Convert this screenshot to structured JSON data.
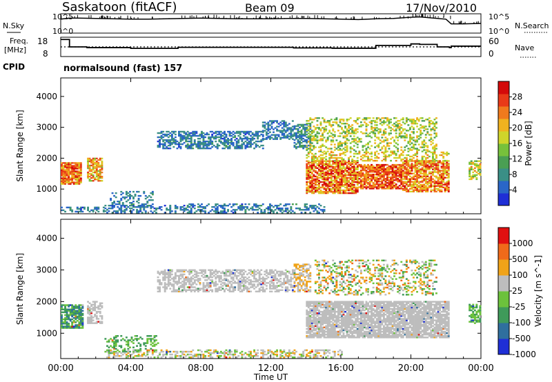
{
  "header": {
    "station": "Saskatoon (fitACF)",
    "beam": "Beam 09",
    "date": "17/Nov/2010",
    "cpid_label": "CPID",
    "mode": "normalsound (fast) 157"
  },
  "colors": {
    "scatter_grey": "#bdbdbd",
    "noise_black": "#000000"
  },
  "chart_data": [
    {
      "type": "line",
      "panel": "noise",
      "left_label": "N.Sky",
      "right_label": "N.Search",
      "left_ticks": [
        "10^5",
        "10^0"
      ],
      "right_ticks": [
        "10^5",
        "10^0"
      ],
      "xlim": [
        0,
        24
      ],
      "series": [
        {
          "name": "N.Sky",
          "style": "solid",
          "x": [
            0,
            0.5,
            1,
            2,
            3,
            4,
            5,
            6,
            7,
            8,
            9,
            10,
            11,
            12,
            13,
            14,
            15,
            16,
            17,
            18,
            19,
            20,
            20.5,
            21,
            22,
            22.3,
            23,
            24
          ],
          "values": [
            3.6,
            3.9,
            3.9,
            3.8,
            3.7,
            3.6,
            3.6,
            3.7,
            3.8,
            3.9,
            3.8,
            3.7,
            3.7,
            3.7,
            3.8,
            3.8,
            3.7,
            3.6,
            3.5,
            3.7,
            3.8,
            4.1,
            4.2,
            4.0,
            3.6,
            2.4,
            2.4,
            2.5
          ]
        },
        {
          "name": "N.Search",
          "style": "dotted",
          "x": [],
          "values": []
        }
      ]
    },
    {
      "type": "line",
      "panel": "frequency",
      "left_label": "Freq. [MHz]",
      "right_label": "Nave",
      "left_ticks": [
        18,
        8
      ],
      "right_ticks": [
        60,
        0
      ],
      "xlim": [
        0,
        24
      ],
      "series": [
        {
          "name": "Freq",
          "style": "solid",
          "x": [
            0,
            0.4,
            0.5,
            1.3,
            1.5,
            3.7,
            4.0,
            5.5,
            6.5,
            6.7,
            12.0,
            13.0,
            13.3,
            15.5,
            17.7,
            18.0,
            20.0,
            20.5,
            21.5,
            22.2,
            22.3,
            23.8,
            24
          ],
          "values": [
            17.5,
            17.5,
            12.5,
            12.5,
            12,
            12,
            11.5,
            11.5,
            11.5,
            12.2,
            12.2,
            12.2,
            11.8,
            11.6,
            11.6,
            13.5,
            14.5,
            14.2,
            12.5,
            12,
            13,
            13,
            13
          ]
        },
        {
          "name": "Nave",
          "style": "dotted",
          "x": [
            0,
            24
          ],
          "values": [
            12.5,
            12.5
          ]
        }
      ]
    },
    {
      "type": "heatmap",
      "panel": "power",
      "ylabel": "Slant Range [km]",
      "xlabel": "",
      "xlim": [
        0,
        24
      ],
      "ylim": [
        200,
        4600
      ],
      "yticks": [
        1000,
        2000,
        3000,
        4000
      ],
      "colorbar": {
        "label": "Power [dB]",
        "ticks": [
          4,
          8,
          12,
          16,
          20,
          24,
          28
        ],
        "range": [
          0,
          32
        ],
        "colors": [
          "#1f2fd6",
          "#2a66c7",
          "#3a8f86",
          "#4a9f53",
          "#77c13b",
          "#cfd52b",
          "#f0b21f",
          "#f07a1d",
          "#e83a18",
          "#d40a0a"
        ]
      },
      "echoes": [
        {
          "t": [
            0.0,
            1.2
          ],
          "r": [
            1150,
            1850
          ],
          "v": [
            18,
            30
          ],
          "d": 0.85
        },
        {
          "t": [
            1.5,
            2.4
          ],
          "r": [
            1250,
            2000
          ],
          "v": [
            14,
            28
          ],
          "d": 0.7
        },
        {
          "t": [
            0.0,
            2.5
          ],
          "r": [
            250,
            420
          ],
          "v": [
            3,
            10
          ],
          "d": 0.5
        },
        {
          "t": [
            2.5,
            7.0
          ],
          "r": [
            220,
            450
          ],
          "v": [
            3,
            9
          ],
          "d": 0.45
        },
        {
          "t": [
            2.8,
            5.2
          ],
          "r": [
            400,
            900
          ],
          "v": [
            4,
            10
          ],
          "d": 0.3
        },
        {
          "t": [
            7.0,
            15.0
          ],
          "r": [
            220,
            500
          ],
          "v": [
            3,
            10
          ],
          "d": 0.45
        },
        {
          "t": [
            5.5,
            11.5
          ],
          "r": [
            2300,
            2850
          ],
          "v": [
            3,
            10
          ],
          "d": 0.55
        },
        {
          "t": [
            11.5,
            13.2
          ],
          "r": [
            2600,
            3200
          ],
          "v": [
            3,
            9
          ],
          "d": 0.6
        },
        {
          "t": [
            13.3,
            14.2
          ],
          "r": [
            2300,
            3100
          ],
          "v": [
            4,
            11
          ],
          "d": 0.65
        },
        {
          "t": [
            14.0,
            17.0
          ],
          "r": [
            850,
            1900
          ],
          "v": [
            16,
            32
          ],
          "d": 0.8
        },
        {
          "t": [
            17.0,
            19.5
          ],
          "r": [
            1000,
            1800
          ],
          "v": [
            20,
            32
          ],
          "d": 0.85
        },
        {
          "t": [
            19.5,
            22.2
          ],
          "r": [
            900,
            1900
          ],
          "v": [
            16,
            30
          ],
          "d": 0.75
        },
        {
          "t": [
            14.0,
            21.5
          ],
          "r": [
            2200,
            3300
          ],
          "v": [
            10,
            22
          ],
          "d": 0.35
        },
        {
          "t": [
            14.0,
            22.2
          ],
          "r": [
            1900,
            2200
          ],
          "v": [
            14,
            24
          ],
          "d": 0.4
        },
        {
          "t": [
            23.3,
            24.0
          ],
          "r": [
            1300,
            1900
          ],
          "v": [
            12,
            24
          ],
          "d": 0.6
        }
      ]
    },
    {
      "type": "heatmap",
      "panel": "velocity",
      "ylabel": "Slant Range [km]",
      "xlabel": "Time UT",
      "xlim": [
        0,
        24
      ],
      "ylim": [
        200,
        4600
      ],
      "yticks": [
        1000,
        2000,
        3000,
        4000
      ],
      "xticks": [
        "00:00",
        "04:00",
        "08:00",
        "12:00",
        "16:00",
        "20:00",
        "00:00"
      ],
      "xtick_values": [
        0,
        4,
        8,
        12,
        16,
        20,
        24
      ],
      "colorbar": {
        "label": "Velocity [m s^-1]",
        "ticks": [
          "1000",
          "500",
          "100",
          "25",
          "-25",
          "-100",
          "-500",
          "-1000"
        ],
        "colors": [
          "#1f2fd6",
          "#2f6f9e",
          "#3f9a5a",
          "#6cc23c",
          "#bdbdbd",
          "#f0a318",
          "#f06a1a",
          "#e01010"
        ]
      },
      "echoes": [
        {
          "t": [
            0.0,
            1.3
          ],
          "r": [
            1150,
            1900
          ],
          "v": [
            1,
            3
          ],
          "d": 0.8
        },
        {
          "t": [
            1.5,
            2.4
          ],
          "r": [
            1300,
            2000
          ],
          "v": [
            4,
            4
          ],
          "d": 0.6
        },
        {
          "t": [
            2.5,
            5.5
          ],
          "r": [
            400,
            900
          ],
          "v": [
            2,
            3
          ],
          "d": 0.35
        },
        {
          "t": [
            2.5,
            16.0
          ],
          "r": [
            220,
            480
          ],
          "v": [
            3,
            5
          ],
          "d": 0.45
        },
        {
          "t": [
            5.5,
            13.2
          ],
          "r": [
            2300,
            3000
          ],
          "v": [
            4,
            4
          ],
          "d": 0.55
        },
        {
          "t": [
            13.3,
            14.2
          ],
          "r": [
            2300,
            3200
          ],
          "v": [
            4,
            5
          ],
          "d": 0.6
        },
        {
          "t": [
            14.0,
            22.2
          ],
          "r": [
            850,
            2000
          ],
          "v": [
            4,
            4
          ],
          "d": 0.85
        },
        {
          "t": [
            14.5,
            21.5
          ],
          "r": [
            2200,
            3300
          ],
          "v": [
            2,
            6
          ],
          "d": 0.3
        },
        {
          "t": [
            23.3,
            24.0
          ],
          "r": [
            1300,
            1900
          ],
          "v": [
            2,
            3
          ],
          "d": 0.6
        }
      ]
    }
  ]
}
